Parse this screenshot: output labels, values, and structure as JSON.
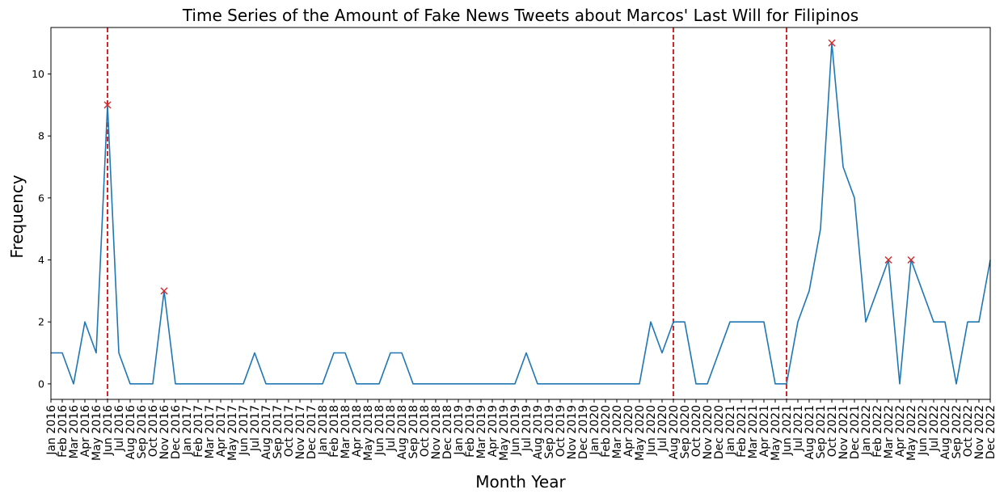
{
  "chart_data": {
    "type": "line",
    "title": "Time Series of the Amount of Fake News Tweets about Marcos' Last Will for Filipinos",
    "xlabel": "Month Year",
    "ylabel": "Frequency",
    "ylim": [
      -0.5,
      11.5
    ],
    "yticks": [
      0,
      2,
      4,
      6,
      8,
      10
    ],
    "grid": false,
    "colors": {
      "line": "#1f77b4",
      "peak_marker": "#d62728",
      "vline": "#d62728",
      "axes": "#000000"
    },
    "categories": [
      "Jan 2016",
      "Feb 2016",
      "Mar 2016",
      "Apr 2016",
      "May 2016",
      "Jun 2016",
      "Jul 2016",
      "Aug 2016",
      "Sep 2016",
      "Oct 2016",
      "Nov 2016",
      "Dec 2016",
      "Jan 2017",
      "Feb 2017",
      "Mar 2017",
      "Apr 2017",
      "May 2017",
      "Jun 2017",
      "Jul 2017",
      "Aug 2017",
      "Sep 2017",
      "Oct 2017",
      "Nov 2017",
      "Dec 2017",
      "Jan 2018",
      "Feb 2018",
      "Mar 2018",
      "Apr 2018",
      "May 2018",
      "Jun 2018",
      "Jul 2018",
      "Aug 2018",
      "Sep 2018",
      "Oct 2018",
      "Nov 2018",
      "Dec 2018",
      "Jan 2019",
      "Feb 2019",
      "Mar 2019",
      "Apr 2019",
      "May 2019",
      "Jun 2019",
      "Jul 2019",
      "Aug 2019",
      "Sep 2019",
      "Oct 2019",
      "Nov 2019",
      "Dec 2019",
      "Jan 2020",
      "Feb 2020",
      "Mar 2020",
      "Apr 2020",
      "May 2020",
      "Jun 2020",
      "Jul 2020",
      "Aug 2020",
      "Sep 2020",
      "Oct 2020",
      "Nov 2020",
      "Dec 2020",
      "Jan 2021",
      "Feb 2021",
      "Mar 2021",
      "Apr 2021",
      "May 2021",
      "Jun 2021",
      "Jul 2021",
      "Aug 2021",
      "Sep 2021",
      "Oct 2021",
      "Nov 2021",
      "Dec 2021",
      "Jan 2022",
      "Feb 2022",
      "Mar 2022",
      "Apr 2022",
      "May 2022",
      "Jun 2022",
      "Jul 2022",
      "Aug 2022",
      "Sep 2022",
      "Oct 2022",
      "Nov 2022",
      "Dec 2022"
    ],
    "series": [
      {
        "values": [
          1,
          1,
          0,
          2,
          1,
          9,
          1,
          0,
          0,
          0,
          3,
          0,
          0,
          0,
          0,
          0,
          0,
          0,
          1,
          0,
          0,
          0,
          0,
          0,
          0,
          1,
          1,
          0,
          0,
          0,
          1,
          1,
          0,
          0,
          0,
          0,
          0,
          0,
          0,
          0,
          0,
          0,
          1,
          0,
          0,
          0,
          0,
          0,
          0,
          0,
          0,
          0,
          0,
          2,
          1,
          2,
          2,
          0,
          0,
          1,
          2,
          2,
          2,
          2,
          0,
          0,
          2,
          3,
          5,
          11,
          7,
          6,
          2,
          3,
          4,
          0,
          4,
          3,
          2,
          2,
          0,
          2,
          2,
          4
        ]
      }
    ],
    "peaks": [
      "Jun 2016",
      "Nov 2016",
      "Oct 2021",
      "Mar 2022",
      "May 2022"
    ],
    "vlines": [
      "Jun 2016",
      "Aug 2020",
      "Jun 2021"
    ],
    "xlim_end_offset": 0
  }
}
